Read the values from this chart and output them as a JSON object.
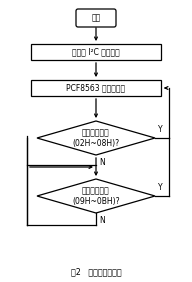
{
  "title": "图2   实时时钟流程图",
  "start_label": "开始",
  "init_label": "初始化 I²C 功能引脚",
  "pcf_label": "PCF8563 寄存器设置",
  "d1_label": "设定日期时间\n(02H~08H)?",
  "d2_label": "更新测量次数\n(09H~0BH)?",
  "y_label": "Y",
  "n_label": "N",
  "fig_width": 1.92,
  "fig_height": 2.82,
  "dpi": 100
}
